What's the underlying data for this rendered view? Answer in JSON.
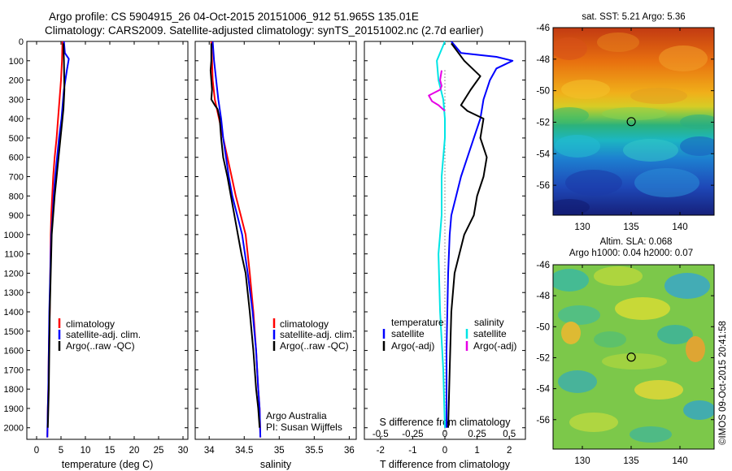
{
  "header": {
    "line1": "Argo profile: CS 5904915_26 04-Oct-2015 20151006_912 51.965S 135.01E",
    "line2": "Climatology: CARS2009. Satellite-adjusted climatology: synTS_20151002.nc (2.7d earlier)"
  },
  "footer": {
    "stamp": "©IMOS 09-Oct-2015 20:41:58",
    "credit1": "Argo Australia",
    "credit2": "PI: Susan Wijffels"
  },
  "colors": {
    "climatology": "#ff0000",
    "satellite": "#0000ff",
    "argo": "#000000",
    "salinity_satellite": "#00e5e5",
    "salinity_argo": "#e600e6"
  },
  "chart_data": [
    {
      "type": "line",
      "panel": "temperature",
      "xlabel": "temperature (deg C)",
      "ylabel": "",
      "xlim": [
        -2,
        31
      ],
      "ylim": [
        2060,
        0
      ],
      "xticks": [
        0,
        5,
        10,
        15,
        20,
        25,
        30
      ],
      "yticks": [
        0,
        100,
        200,
        300,
        400,
        500,
        600,
        700,
        800,
        900,
        1000,
        1100,
        1200,
        1300,
        1400,
        1500,
        1600,
        1700,
        1800,
        1900,
        2000
      ],
      "legend": [
        "climatology",
        "satellite-adj. clim.",
        "Argo(..raw -QC)"
      ],
      "series": [
        {
          "name": "climatology",
          "color_key": "climatology",
          "x": [
            5.3,
            5.2,
            5.0,
            4.7,
            4.4,
            4.1,
            3.7,
            3.4,
            3.2,
            3.0,
            2.9,
            2.8,
            2.7,
            2.6,
            2.5,
            2.4,
            2.3,
            2.2
          ],
          "y": [
            0,
            100,
            200,
            300,
            400,
            500,
            600,
            700,
            800,
            900,
            1000,
            1200,
            1400,
            1500,
            1600,
            1800,
            1900,
            2050
          ]
        },
        {
          "name": "satellite-adj. clim.",
          "color_key": "satellite",
          "x": [
            5.6,
            5.8,
            6.6,
            6.2,
            5.6,
            5.1,
            4.6,
            4.2,
            3.8,
            3.5,
            3.3,
            3.0,
            2.8,
            2.6,
            2.5,
            2.4,
            2.3,
            2.2
          ],
          "y": [
            0,
            60,
            90,
            150,
            250,
            400,
            500,
            600,
            700,
            800,
            900,
            1000,
            1200,
            1400,
            1600,
            1800,
            1900,
            2050
          ]
        },
        {
          "name": "Argo(..raw -QC)",
          "color_key": "argo",
          "x": [
            5.5,
            5.6,
            5.7,
            5.6,
            5.5,
            5.3,
            4.9,
            4.5,
            4.1,
            3.7,
            3.4,
            3.1,
            2.9,
            2.7,
            2.6,
            2.5,
            2.4,
            2.3
          ],
          "y": [
            10,
            100,
            250,
            300,
            350,
            400,
            500,
            600,
            700,
            800,
            900,
            1000,
            1200,
            1400,
            1600,
            1800,
            1900,
            2000
          ]
        }
      ]
    },
    {
      "type": "line",
      "panel": "salinity",
      "xlabel": "salinity",
      "ylabel": "",
      "xlim": [
        33.8,
        36.1
      ],
      "ylim": [
        2060,
        0
      ],
      "xticks": [
        34,
        34.5,
        35,
        35.5,
        36
      ],
      "yticks": [
        0,
        100,
        200,
        300,
        400,
        500,
        600,
        700,
        800,
        900,
        1000,
        1100,
        1200,
        1300,
        1400,
        1500,
        1600,
        1700,
        1800,
        1900,
        2000
      ],
      "legend": [
        "climatology",
        "satellite-adj. clim.",
        "Argo(..raw -QC)"
      ],
      "series": [
        {
          "name": "climatology",
          "color_key": "climatology",
          "x": [
            34.03,
            34.04,
            34.05,
            34.08,
            34.14,
            34.2,
            34.26,
            34.32,
            34.38,
            34.45,
            34.52,
            34.58,
            34.63,
            34.67,
            34.7,
            34.72,
            34.73
          ],
          "y": [
            0,
            100,
            200,
            300,
            400,
            500,
            600,
            700,
            800,
            900,
            1000,
            1200,
            1400,
            1600,
            1800,
            1900,
            2050
          ]
        },
        {
          "name": "satellite-adj. clim.",
          "color_key": "satellite",
          "x": [
            34.05,
            34.07,
            34.1,
            34.13,
            34.17,
            34.2,
            34.24,
            34.28,
            34.33,
            34.4,
            34.47,
            34.55,
            34.62,
            34.67,
            34.7,
            34.72,
            34.73
          ],
          "y": [
            0,
            100,
            200,
            300,
            400,
            500,
            600,
            700,
            800,
            900,
            1000,
            1200,
            1400,
            1600,
            1800,
            1900,
            2050
          ]
        },
        {
          "name": "Argo(..raw -QC)",
          "color_key": "argo",
          "x": [
            34.03,
            34.03,
            34.02,
            34.04,
            34.03,
            34.08,
            34.12,
            34.15,
            34.17,
            34.2,
            34.26,
            34.31,
            34.36,
            34.41,
            34.46,
            34.52,
            34.58,
            34.63,
            34.67,
            34.7,
            34.72
          ],
          "y": [
            10,
            100,
            150,
            250,
            300,
            330,
            350,
            400,
            500,
            600,
            700,
            800,
            900,
            1000,
            1100,
            1200,
            1400,
            1600,
            1800,
            1900,
            2000
          ]
        }
      ]
    },
    {
      "type": "line",
      "panel": "difference",
      "xlabel": "T difference from climatology",
      "xlabel_top": "S difference from climatology",
      "ylabel": "",
      "xlim": [
        -2.5,
        2.5
      ],
      "ylim": [
        2060,
        0
      ],
      "xticks": [
        -2,
        -1,
        0,
        1,
        2
      ],
      "s_xticks": [
        "-0.5",
        "-0.25",
        "0",
        "0.25",
        "0.5"
      ],
      "s_xtick_positions": [
        -2,
        -1,
        0,
        1,
        2
      ],
      "yticks": [
        0,
        100,
        200,
        300,
        400,
        500,
        600,
        700,
        800,
        900,
        1000,
        1100,
        1200,
        1300,
        1400,
        1500,
        1600,
        1700,
        1800,
        1900,
        2000
      ],
      "legend_left_title": "temperature",
      "legend_right_title": "salinity",
      "legend": [
        "satellite",
        "Argo(-adj)",
        "satellite",
        "Argo(-adj)"
      ],
      "series": [
        {
          "name": "satellite",
          "color_key": "satellite",
          "group": "temperature",
          "x": [
            0.2,
            0.5,
            1.6,
            2.1,
            1.6,
            1.4,
            1.2,
            1.1,
            0.9,
            0.7,
            0.5,
            0.35,
            0.2,
            0.15,
            0.1,
            0.05,
            0.05
          ],
          "y": [
            0,
            60,
            80,
            100,
            140,
            200,
            300,
            400,
            500,
            600,
            700,
            800,
            900,
            1000,
            1200,
            1600,
            2000
          ]
        },
        {
          "name": "Argo(-adj)",
          "color_key": "argo",
          "group": "temperature",
          "x": [
            0.2,
            0.6,
            1.1,
            0.8,
            0.5,
            0.7,
            1.2,
            1.1,
            1.3,
            1.2,
            1.0,
            0.9,
            0.6,
            0.45,
            0.3,
            0.2,
            0.15,
            0.1
          ],
          "y": [
            10,
            100,
            180,
            250,
            330,
            360,
            400,
            500,
            600,
            700,
            800,
            900,
            1000,
            1100,
            1200,
            1400,
            1700,
            2000
          ]
        },
        {
          "name": "satellite",
          "color_key": "salinity_satellite",
          "group": "salinity",
          "x": [
            0.0,
            -0.25,
            -0.2,
            -0.05,
            0.0,
            0.0,
            -0.05,
            -0.1,
            -0.1,
            -0.1,
            -0.15,
            -0.2,
            -0.15,
            -0.05,
            0.0
          ],
          "y": [
            0,
            100,
            200,
            300,
            400,
            500,
            600,
            700,
            800,
            900,
            1000,
            1100,
            1400,
            1700,
            2000
          ]
        },
        {
          "name": "Argo(-adj)",
          "color_key": "salinity_argo",
          "group": "salinity",
          "x": [
            -0.1,
            -0.15,
            -0.1,
            -0.15,
            -0.5,
            -0.4,
            -0.2,
            0.0
          ],
          "y": [
            150,
            200,
            230,
            250,
            280,
            310,
            330,
            360
          ]
        }
      ]
    },
    {
      "type": "heatmap",
      "panel": "sst-map",
      "title": "sat. SST: 5.21  Argo: 5.36",
      "xticks": [
        130,
        135,
        140
      ],
      "yticks": [
        -46,
        -48,
        -50,
        -52,
        -54,
        -56
      ],
      "xlim": [
        127,
        143.5
      ],
      "ylim": [
        -57.9,
        -46
      ],
      "marker": {
        "lon": 135.01,
        "lat": -51.965
      }
    },
    {
      "type": "heatmap",
      "panel": "sla-map",
      "title": "Altim. SLA: 0.068",
      "subtitle": "Argo h1000: 0.04 h2000: 0.07",
      "xticks": [
        130,
        135,
        140
      ],
      "yticks": [
        -46,
        -48,
        -50,
        -52,
        -54,
        -56
      ],
      "xlim": [
        127,
        143.5
      ],
      "ylim": [
        -57.9,
        -46
      ],
      "marker": {
        "lon": 135.01,
        "lat": -51.965
      }
    }
  ]
}
